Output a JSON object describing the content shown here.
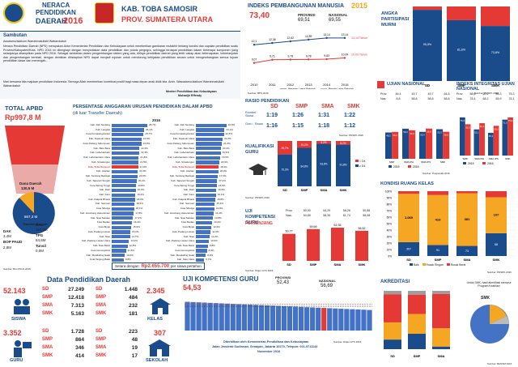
{
  "header": {
    "title_line1": "NERACA",
    "title_line2": "PENDIDIKAN",
    "title_line3": "DAERAH",
    "year": "2016",
    "region": "KAB. TOBA SAMOSIR",
    "province": "PROV. SUMATERA UTARA"
  },
  "sambutan": {
    "title": "Sambutan",
    "greeting": "Assalamu'alaikum Warrahmatullahi Wabarokatuh",
    "p1": "Neraca Pendidikan Daerah (NPD) merupakan Aktor Kementerian Pendidikan dan Kebudayaan untuk memberikan gambaran mutakhir tentang kondisi dan capaian pendidikan suatu Provinsi/Kabupaten/Kota. NPD 2016 ini dilengkapi dengan menyediakan data pendidikan dan pranis pergegra, sehingga terdapat pendidikan dalam beberapa komponen yang selanjutnya ditampilkan pada NPD 2016. Sebagai tambahan dalam pengembangan sistem yang ada, dirinya pendidikan daerah yang lebih cakap akan ketercapaian, keberlanjutan dan pengembangan kembali, dengan demikian diharapkan NPD dapat menjadi rujukan untuk mendorong kebijakan pendidikan secara untuk mengembangkan semua tujuan pendidikan dasar dan menengah...",
    "p2": "Mari bersama kita majukan pendidikan Indonesia. Semoga Allah memberikan kontribusi positif bagi masa depan anak didik kita. Amin. Wassalamu'alaikum Warrahmatullahi Wabarokatuh",
    "signer1": "Menteri Pendidikan dan Kebudayaan",
    "signer2": "Muhadjir Effendy"
  },
  "ipm": {
    "title": "INDEKS PEMBANGUNAN MANUSIA",
    "year": "2015",
    "value": "73,40",
    "provinsi_label": "PROVINSI",
    "provinsi_value": "69,51",
    "nasional_label": "NASIONAL",
    "nasional_value": "69,55",
    "years": [
      "2010",
      "2011",
      "2012",
      "2013",
      "2014",
      "2015"
    ],
    "top_series": [
      12.1,
      12.36,
      12.62,
      12.89,
      13.14,
      13.14
    ],
    "top_labels": [
      "12,1",
      "12,36",
      "12,62",
      "12,89",
      "13,14",
      "13,14"
    ],
    "bottom_series": [
      9.07,
      9.71,
      9.76,
      9.78,
      9.83,
      10.09
    ],
    "bottom_labels": [
      "9,07",
      "9,71",
      "9,76",
      "9,78",
      "9,83",
      "10,09"
    ],
    "right_top": "13,14 Tahun",
    "right_bottom": "10,09 Tahun",
    "legend1": "Harapan Lama Sekolah",
    "legend2": "Rerata Lama Sekolah",
    "source": "Sumber: BPS 2016"
  },
  "partisipasi": {
    "title": "ANGKA PARTISIPASI MURNI",
    "categories": [
      "SD",
      "SMP",
      "SMA"
    ],
    "values_blue": [
      95.5,
      81.6,
      73.8
    ],
    "labels": [
      "95,5%",
      "81,6%",
      "73,8%"
    ],
    "source": "Sumber: PDSPK 2016"
  },
  "apbd": {
    "title": "TOTAL APBD",
    "value": "Rp997,8 M",
    "dana_label": "Dana Daerah",
    "dana_value": "130,5 M",
    "transfer_label": "Transfer Daerah",
    "transfer_value": "867,3 M",
    "dau_label": "DAU",
    "dau_value": "110,3M",
    "tpg_label": "TPG",
    "tpg_value": "84,6M",
    "bantuan_label": "Tunsil",
    "bantuan_value": "0,0M",
    "dak_label": "DAK",
    "dak_value": "3,4M",
    "bop_label": "BOP PAUD",
    "bop_value": "2,8M",
    "source": "Sumber: Biro PKLN 2016"
  },
  "persentase": {
    "title": "PERSENTASE ANGGARAN URUSAN PENDIDIKAN DALAM APBD",
    "subtitle": "(di luar Transfer Daerah)",
    "year": "2016",
    "left": [
      [
        "Kab. Deli Serdang",
        28.7
      ],
      [
        "Kab. Langkat",
        26.1
      ],
      [
        "Kota Pematangsiantar",
        25.7
      ],
      [
        "Kab. Tapanuli Utara",
        24.0
      ],
      [
        "Kota Padang Sidempuan",
        23.9
      ],
      [
        "Kab. Batu Bara",
        22.4
      ],
      [
        "Kab. Labuhanbatu",
        22.3
      ],
      [
        "Kab. Labuhanbatu Utara",
        21.8
      ],
      [
        "Kab. Simalungun",
        21.5
      ],
      [
        "Kab. Toba Samosir",
        21.3
      ],
      [
        "Kab. Asahan",
        21.0
      ],
      [
        "Kab. Serdang Bedagai",
        20.9
      ],
      [
        "Kab. Tapanuli Tengah",
        20.2
      ],
      [
        "Kota Tebing Tinggi",
        19.8
      ],
      [
        "Kab. Dairi",
        19.4
      ],
      [
        "Kab. Karo",
        19.2
      ],
      [
        "Kab. Pakpak Bharat",
        18.9
      ],
      [
        "Kab. Samosir",
        18.5
      ],
      [
        "Kota Sibolga",
        18.1
      ],
      [
        "Kab. Humbang Hasundutan",
        17.8
      ],
      [
        "Kab. Nias Selatan",
        17.2
      ],
      [
        "Kota Medan",
        16.4
      ],
      [
        "Kota Binjai",
        15.9
      ],
      [
        "Kab. Padang Lawas",
        15.0
      ],
      [
        "Kab. Nias",
        14.7
      ],
      [
        "Kab. Padang Lawas Utara",
        14.0
      ],
      [
        "Kab. Nias Barat",
        12.8
      ],
      [
        "Kota Gunungsitoli",
        11.5
      ],
      [
        "Kab. Mandailing Natal",
        10.6
      ],
      [
        "Kota Tanjung Balai",
        9.8
      ]
    ],
    "right": [
      [
        "Kab. Deli Serdang",
        24.6
      ],
      [
        "Kab. Langkat",
        23.1
      ],
      [
        "Kota Pematangsiantar",
        22.5
      ],
      [
        "Kab. Tapanuli Utara",
        21.6
      ],
      [
        "Kota Padang Sidempuan",
        21.0
      ],
      [
        "Kab. Batu Bara",
        20.3
      ],
      [
        "Kab. Labuhanbatu",
        19.9
      ],
      [
        "Kab. Labuhanbatu Utara",
        19.6
      ],
      [
        "Kab. Simalungun",
        18.9
      ],
      [
        "Kab. Toba Samosir",
        18.4
      ],
      [
        "Kab. Asahan",
        18.0
      ],
      [
        "Kab. Serdang Bedagai",
        17.6
      ],
      [
        "Kab. Tapanuli Tengah",
        17.2
      ],
      [
        "Kota Tebing Tinggi",
        16.9
      ],
      [
        "Kab. Dairi",
        16.5
      ],
      [
        "Kab. Karo",
        16.1
      ],
      [
        "Kab. Pakpak Bharat",
        15.8
      ],
      [
        "Kab. Samosir",
        15.3
      ],
      [
        "Kota Sibolga",
        14.9
      ],
      [
        "Kab. Humbang Hasundutan",
        14.4
      ],
      [
        "Kab. Nias Selatan",
        13.8
      ],
      [
        "Kota Medan",
        13.2
      ],
      [
        "Kota Binjai",
        12.6
      ],
      [
        "Kab. Padang Lawas",
        11.9
      ],
      [
        "Kab. Nias",
        11.2
      ],
      [
        "Kab. Padang Lawas Utara",
        10.6
      ],
      [
        "Kab. Nias Barat",
        9.8
      ],
      [
        "Kota Gunungsitoli",
        8.9
      ],
      [
        "Kab. Mandailing Natal",
        8.0
      ],
      [
        "Kab. Nias Utara",
        6.7
      ]
    ],
    "highlight": "Kab. Toba Samosir",
    "footer_label": "Setara dengan:",
    "footer_value": "Rp2.655.700",
    "footer_unit": "per siswa pertahun"
  },
  "rasio": {
    "title": "RASIO PENDIDIKAN",
    "cols": [
      "SD",
      "SMP",
      "SMA",
      "SMK"
    ],
    "row1_label": "Rombel : Siswa",
    "row1": [
      "1:19",
      "1:26",
      "1:31",
      "1:22"
    ],
    "row2_label": "Guru : Siswa",
    "row2": [
      "1:16",
      "1:15",
      "1:18",
      "1:12"
    ],
    "source": "Sumber: PDSPK 2016"
  },
  "kualifikasi": {
    "title": "KUALIFIKASI GURU",
    "categories": [
      "SD",
      "SMP",
      "SMA",
      "SMK"
    ],
    "bottom": [
      70.3,
      84.8,
      93.8,
      91.8
    ],
    "top": [
      29.7,
      15.2,
      6.2,
      8.2
    ],
    "bottom_labels": [
      "70,3%",
      "84,8%",
      "93,8%",
      "91,8%"
    ],
    "top_labels": [
      "29,7%",
      "15,2%",
      "6,2%",
      "8,2%"
    ],
    "legend1": "< D4",
    "legend2": "≥ D4",
    "source": "Sumber: PDSPK 2016"
  },
  "ukg_small": {
    "title": "UJI KOMPETENSI GURU",
    "subtitle": "PERJENJANG",
    "prov_label": "Prov.",
    "nas_label": "Nas.",
    "prov": [
      "50,00",
      "54,29",
      "58,28",
      "50,88"
    ],
    "nas": [
      "54,89",
      "58,35",
      "61,74",
      "58,08"
    ],
    "categories": [
      "SD",
      "SMP",
      "SMA",
      "SMK"
    ],
    "values": [
      50.77,
      59.69,
      62.35,
      56.52
    ],
    "labels": [
      "50,77",
      "59,69",
      "62,35",
      "56,52"
    ],
    "source": "Sumber: Ditjen GTK 2015"
  },
  "ujian": {
    "title": "UJIAN NASIONAL",
    "prov_label": "Prov.",
    "nas_label": "Nas.",
    "prov": [
      "46,4",
      "49,7",
      "49,7",
      "64,8"
    ],
    "nas": [
      "8,8",
      "58,8",
      "58,8",
      "58,8"
    ],
    "categories": [
      "SMP",
      "SMA IPA",
      "SMA IPS",
      "SMK"
    ],
    "v2015": [
      49.2,
      56.3,
      50.4,
      55.3
    ],
    "v2016": [
      50.2,
      53.3,
      56.5,
      50.5
    ],
    "legend1": "2015",
    "legend2": "2016"
  },
  "integritas": {
    "title": "INDEKS INTEGRITAS UJIAN NASIONAL",
    "prov_label": "Prov.",
    "nas_label": "Nas.",
    "prov": [
      "58,6",
      "60,1",
      "58,3",
      "75,3"
    ],
    "nas": [
      "76,4",
      "68,2",
      "65,9",
      "76,1"
    ],
    "categories": [
      "SMP",
      "SMA IPA",
      "SMA IPS",
      "SMK"
    ],
    "v2015": [
      76.0,
      52.1,
      45.3,
      71.5
    ],
    "v2016": [
      62.3,
      64.4,
      59.2,
      75.8
    ],
    "legend1": "2015",
    "legend2": "2016",
    "source": "Sumber: Puspendik 2016"
  },
  "kondisi": {
    "title": "KONDISI RUANG KELAS",
    "categories": [
      "SD",
      "SMP",
      "SMA",
      "SMK"
    ],
    "baik": [
      307,
      91,
      73,
      68
    ],
    "rusak_ringan": [
      1069,
      413,
      381,
      107
    ],
    "rusak_berat": [
      58,
      32,
      15,
      18
    ],
    "labels_ringan": [
      "1.069",
      "413",
      "381",
      "107"
    ],
    "labels_baik": [
      "307",
      "91",
      "73",
      "68"
    ],
    "legend": [
      "Baik",
      "Rusak Ringan",
      "Rusak Berat"
    ],
    "yticks": [
      "100%",
      "90%",
      "80%",
      "70%",
      "60%",
      "50%",
      "40%",
      "30%",
      "20%",
      "10%",
      "0%"
    ],
    "source": "Sumber: PDSPK 2016"
  },
  "data_pendidikan": {
    "title": "Data Pendidikan Daerah",
    "siswa_total": "52.143",
    "siswa_label": "SISWA",
    "siswa_rows": [
      [
        "SD",
        "27.249"
      ],
      [
        "SMP",
        "12.418"
      ],
      [
        "SMA",
        "7.313"
      ],
      [
        "SMK",
        "5.163"
      ]
    ],
    "kelas_total": "2.345",
    "kelas_label": "KELAS",
    "kelas_rows": [
      [
        "SD",
        "1.448"
      ],
      [
        "SMP",
        "484"
      ],
      [
        "SMA",
        "232"
      ],
      [
        "SMK",
        "181"
      ]
    ],
    "guru_total": "3.352",
    "guru_label": "GURU",
    "guru_rows": [
      [
        "SD",
        "1.728"
      ],
      [
        "SMP",
        "864"
      ],
      [
        "SMA",
        "346"
      ],
      [
        "SMK",
        "414"
      ]
    ],
    "sekolah_total": "307",
    "sekolah_label": "SEKOLAH",
    "sekolah_rows": [
      [
        "SD",
        "223"
      ],
      [
        "SMP",
        "48"
      ],
      [
        "SMA",
        "19"
      ],
      [
        "SMK",
        "17"
      ]
    ]
  },
  "ukg_big": {
    "title": "UJI KOMPETENSI GURU",
    "value": "54,53",
    "provinsi_label": "PROVINSI",
    "provinsi_value": "52,43",
    "nasional_label": "NASIONAL",
    "nasional_value": "56,69",
    "footer1": "Diterbitkan oleh Kementerian Pendidikan dan Kebudayaan",
    "footer2": "Jalan Jenderal Sudirman, Senayan, Jakarta 10270, Telepon: 021-5711144",
    "footer3": "November 2016",
    "source": "Sumber: Ditjen GTK 2015"
  },
  "akreditasi": {
    "title": "AKREDITASI",
    "categories": [
      "SD",
      "SMP",
      "SMA"
    ],
    "note": "Untuk SMK, hasil akreditasi menurut Program Keahlian",
    "smk_label": "SMK",
    "source": "Sumber: BANSM 2016"
  },
  "colors": {
    "brand": "#1a4c8c",
    "accent": "#e53935",
    "bar": "#4472c4",
    "orange": "#f5a623"
  }
}
